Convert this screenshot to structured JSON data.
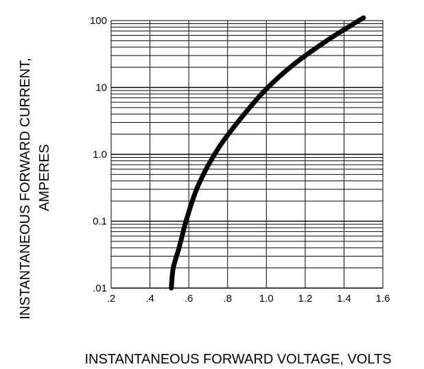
{
  "chart_data": {
    "type": "line",
    "x_axis_label": "INSTANTANEOUS FORWARD VOLTAGE,  VOLTS",
    "y_axis_label_lines": [
      "INSTANTANEOUS FORWARD CURRENT,",
      "AMPERES"
    ],
    "x_scale": "linear",
    "y_scale": "log",
    "xlim": [
      0.2,
      1.6
    ],
    "ylim": [
      0.01,
      100
    ],
    "x_tick_values": [
      0.2,
      0.4,
      0.6,
      0.8,
      1.0,
      1.2,
      1.4,
      1.6
    ],
    "x_tick_labels": [
      ".2",
      ".4",
      ".6",
      ".8",
      "1.0",
      "1.2",
      "1.4",
      "1.6"
    ],
    "y_tick_values": [
      0.01,
      0.1,
      1,
      10,
      100
    ],
    "y_tick_labels": [
      ".01",
      "0.1",
      "1.0",
      "10",
      "100"
    ],
    "grid": true,
    "series": [
      {
        "x": [
          0.51,
          0.52,
          0.55,
          0.59,
          0.65,
          0.75,
          0.87,
          1.0,
          1.14,
          1.32,
          1.5
        ],
        "y": [
          0.01,
          0.02,
          0.04,
          0.11,
          0.35,
          1.2,
          3.5,
          9.5,
          22,
          52,
          110
        ]
      }
    ],
    "colors": {
      "grid": "#000000",
      "line": "#000000",
      "background": "#ffffff"
    }
  }
}
